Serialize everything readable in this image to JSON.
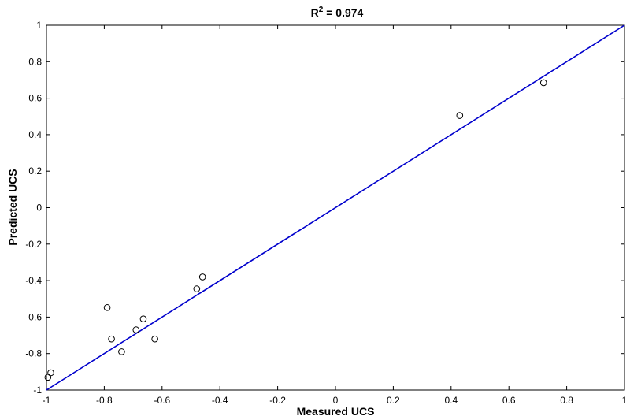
{
  "chart_data": {
    "type": "scatter",
    "title_main": "R",
    "title_sup": "2",
    "title_rest": " = 0.974",
    "xlabel": "Measured UCS",
    "ylabel": "Predicted UCS",
    "xlim": [
      -1,
      1
    ],
    "ylim": [
      -1,
      1
    ],
    "xticks": [
      -1,
      -0.8,
      -0.6,
      -0.4,
      -0.2,
      0,
      0.2,
      0.4,
      0.6,
      0.8,
      1
    ],
    "yticks": [
      -1,
      -0.8,
      -0.6,
      -0.4,
      -0.2,
      0,
      0.2,
      0.4,
      0.6,
      0.8,
      1
    ],
    "xtick_labels": [
      "-1",
      "-0.8",
      "-0.6",
      "-0.4",
      "-0.2",
      "0",
      "0.2",
      "0.4",
      "0.6",
      "0.8",
      "1"
    ],
    "ytick_labels": [
      "-1",
      "-0.8",
      "-0.6",
      "-0.4",
      "-0.2",
      "0",
      "0.2",
      "0.4",
      "0.6",
      "0.8",
      "1"
    ],
    "grid": false,
    "points": [
      {
        "x": -0.995,
        "y": -0.93
      },
      {
        "x": -0.985,
        "y": -0.905
      },
      {
        "x": -0.79,
        "y": -0.548
      },
      {
        "x": -0.775,
        "y": -0.72
      },
      {
        "x": -0.74,
        "y": -0.79
      },
      {
        "x": -0.69,
        "y": -0.67
      },
      {
        "x": -0.665,
        "y": -0.61
      },
      {
        "x": -0.625,
        "y": -0.72
      },
      {
        "x": -0.48,
        "y": -0.445
      },
      {
        "x": -0.46,
        "y": -0.38
      },
      {
        "x": 0.43,
        "y": 0.505
      },
      {
        "x": 0.72,
        "y": 0.685
      }
    ],
    "fit_line": {
      "x": [
        -1,
        1
      ],
      "y": [
        -1,
        1
      ],
      "color": "#0000cc"
    },
    "marker_color": "#000000"
  }
}
